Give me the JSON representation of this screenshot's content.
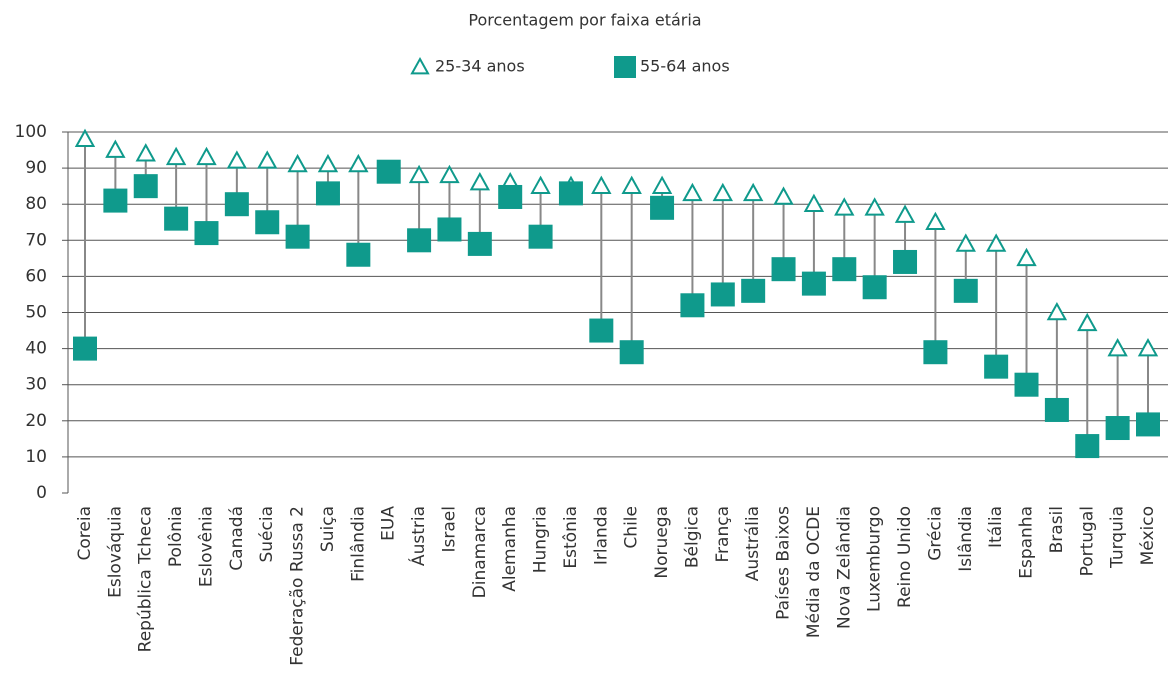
{
  "chart_data": {
    "type": "dumbbell",
    "title": "Porcentagem por faixa etária",
    "categories": [
      "Coreia",
      "Eslováquia",
      "República Tcheca",
      "Polônia",
      "Eslovênia",
      "Canadá",
      "Suécia",
      "Federação Russa 2",
      "Suiça",
      "Finlândia",
      "EUA",
      "Áustria",
      "Israel",
      "Dinamarca",
      "Alemanha",
      "Hungria",
      "Estônia",
      "Irlanda",
      "Chile",
      "Noruega",
      "Bélgica",
      "França",
      "Austrália",
      "Países Baixos",
      "Média da OCDE",
      "Nova Zelândia",
      "Luxemburgo",
      "Reino Unido",
      "Grécia",
      "Islândia",
      "Itália",
      "Espanha",
      "Brasil",
      "Portugal",
      "Turquia",
      "México"
    ],
    "series": [
      {
        "name": "25-34 anos",
        "color": "#0f9a8c",
        "marker": "triangle",
        "values": [
          98,
          95,
          94,
          93,
          93,
          92,
          92,
          91,
          91,
          91,
          89,
          88,
          88,
          86,
          86,
          85,
          85,
          85,
          85,
          85,
          83,
          83,
          83,
          82,
          80,
          79,
          79,
          77,
          75,
          69,
          69,
          65,
          50,
          47,
          40,
          40
        ]
      },
      {
        "name": "55-64 anos",
        "color": "#0f9a8c",
        "marker": "square",
        "values": [
          40,
          81,
          85,
          76,
          72,
          80,
          75,
          71,
          83,
          66,
          89,
          70,
          73,
          69,
          82,
          71,
          83,
          45,
          39,
          79,
          52,
          55,
          56,
          62,
          58,
          62,
          57,
          64,
          39,
          56,
          35,
          30,
          23,
          13,
          18,
          19
        ]
      }
    ],
    "ylim": [
      0,
      100
    ],
    "yticks": [
      0,
      10,
      20,
      30,
      40,
      50,
      60,
      70,
      80,
      90,
      100
    ],
    "grid": true
  }
}
